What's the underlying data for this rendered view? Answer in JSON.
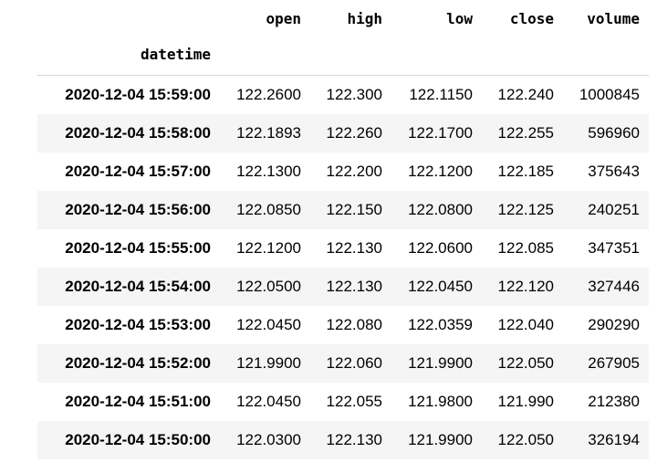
{
  "columns": [
    "open",
    "high",
    "low",
    "close",
    "volume"
  ],
  "index_name": "datetime",
  "rows": [
    {
      "datetime": "2020-12-04 15:59:00",
      "open": "122.2600",
      "high": "122.300",
      "low": "122.1150",
      "close": "122.240",
      "volume": "1000845"
    },
    {
      "datetime": "2020-12-04 15:58:00",
      "open": "122.1893",
      "high": "122.260",
      "low": "122.1700",
      "close": "122.255",
      "volume": "596960"
    },
    {
      "datetime": "2020-12-04 15:57:00",
      "open": "122.1300",
      "high": "122.200",
      "low": "122.1200",
      "close": "122.185",
      "volume": "375643"
    },
    {
      "datetime": "2020-12-04 15:56:00",
      "open": "122.0850",
      "high": "122.150",
      "low": "122.0800",
      "close": "122.125",
      "volume": "240251"
    },
    {
      "datetime": "2020-12-04 15:55:00",
      "open": "122.1200",
      "high": "122.130",
      "low": "122.0600",
      "close": "122.085",
      "volume": "347351"
    },
    {
      "datetime": "2020-12-04 15:54:00",
      "open": "122.0500",
      "high": "122.130",
      "low": "122.0450",
      "close": "122.120",
      "volume": "327446"
    },
    {
      "datetime": "2020-12-04 15:53:00",
      "open": "122.0450",
      "high": "122.080",
      "low": "122.0359",
      "close": "122.040",
      "volume": "290290"
    },
    {
      "datetime": "2020-12-04 15:52:00",
      "open": "121.9900",
      "high": "122.060",
      "low": "121.9900",
      "close": "122.050",
      "volume": "267905"
    },
    {
      "datetime": "2020-12-04 15:51:00",
      "open": "122.0450",
      "high": "122.055",
      "low": "121.9800",
      "close": "121.990",
      "volume": "212380"
    },
    {
      "datetime": "2020-12-04 15:50:00",
      "open": "122.0300",
      "high": "122.130",
      "low": "121.9900",
      "close": "122.050",
      "volume": "326194"
    }
  ]
}
